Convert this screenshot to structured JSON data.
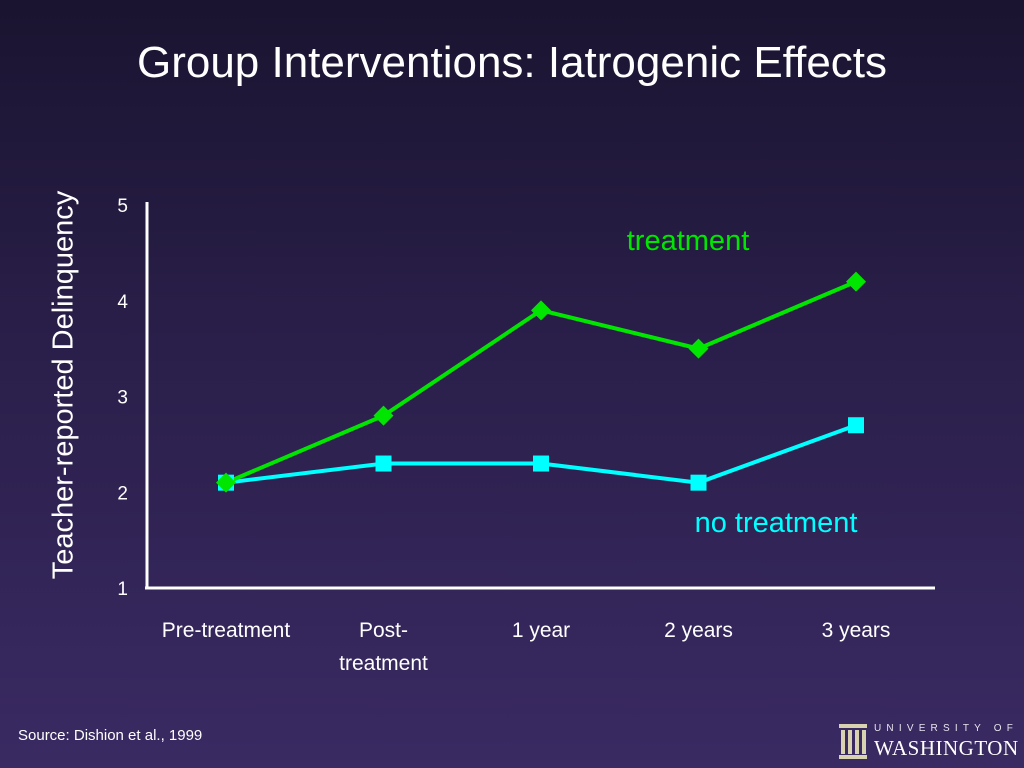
{
  "title": "Group Interventions: Iatrogenic Effects",
  "source": "Source: Dishion et al., 1999",
  "logo": {
    "line1": "UNIVERSITY OF",
    "line2": "WASHINGTON",
    "icon": "columns-icon"
  },
  "chart_data": {
    "type": "line",
    "categories": [
      [
        "Pre-treatment"
      ],
      [
        "Post-",
        "treatment"
      ],
      [
        "1 year"
      ],
      [
        "2 years"
      ],
      [
        "3 years"
      ]
    ],
    "ylabel": "Teacher-reported Delinquency",
    "xlabel": "",
    "ylim": [
      1,
      5
    ],
    "yticks": [
      "1",
      "2",
      "3",
      "4",
      "5"
    ],
    "grid": false,
    "series": [
      {
        "name": "treatment",
        "color": "#00e600",
        "marker": "diamond",
        "values": [
          2.1,
          2.8,
          3.9,
          3.5,
          4.2
        ]
      },
      {
        "name": "no treatment",
        "color": "#00ffff",
        "marker": "square",
        "values": [
          2.1,
          2.3,
          2.3,
          2.1,
          2.7
        ]
      }
    ]
  }
}
